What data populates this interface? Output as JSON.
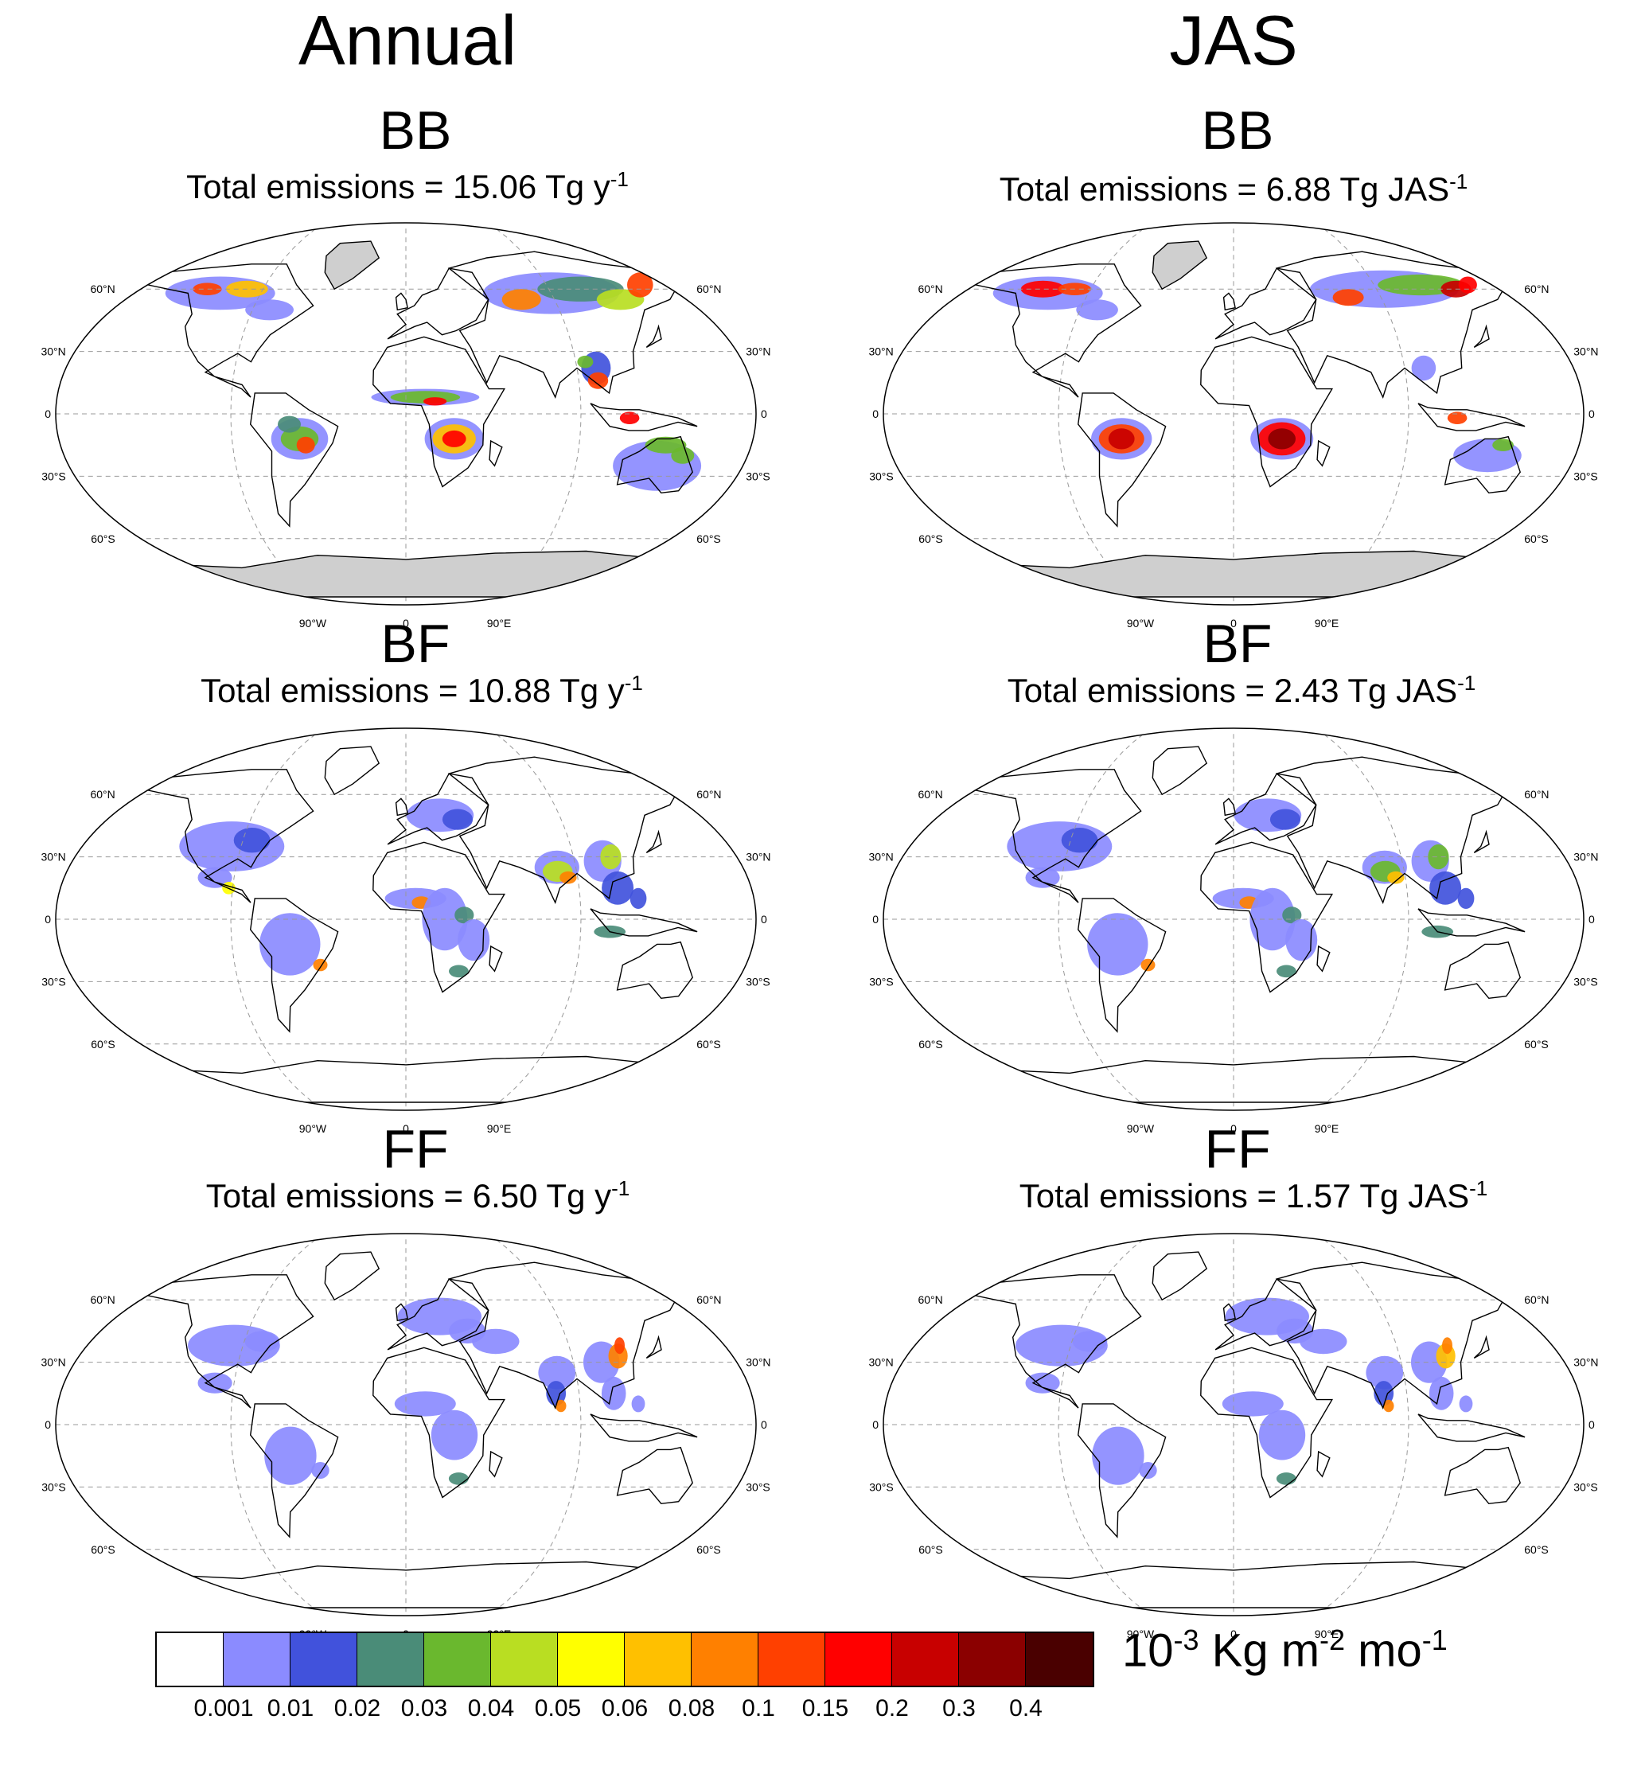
{
  "columns": [
    {
      "title": "Annual"
    },
    {
      "title": "JAS"
    }
  ],
  "panels": [
    {
      "species": "BB",
      "emissions_prefix": "Total emissions = 15.06 Tg y",
      "emissions_exp": "-1"
    },
    {
      "species": "BB",
      "emissions_prefix": "Total emissions = 6.88 Tg JAS",
      "emissions_exp": "-1"
    },
    {
      "species": "BF",
      "emissions_prefix": "Total emissions = 10.88 Tg y",
      "emissions_exp": "-1"
    },
    {
      "species": "BF",
      "emissions_prefix": "Total emissions = 2.43 Tg JAS",
      "emissions_exp": "-1"
    },
    {
      "species": "FF",
      "emissions_prefix": "Total emissions = 6.50 Tg y",
      "emissions_exp": "-1"
    },
    {
      "species": "FF",
      "emissions_prefix": "Total emissions = 1.57 Tg JAS",
      "emissions_exp": "-1"
    }
  ],
  "map_labels": {
    "lat": [
      "60°N",
      "30°N",
      "0",
      "30°S",
      "60°S"
    ],
    "lon": [
      "90°W",
      "0",
      "90°E"
    ]
  },
  "colorbar": {
    "colors": [
      "#ffffff",
      "#8b8bff",
      "#4152dc",
      "#4a8c78",
      "#6ab82e",
      "#b9de22",
      "#ffff00",
      "#ffc000",
      "#ff8000",
      "#ff4000",
      "#ff0000",
      "#c80000",
      "#8b0000",
      "#4a0000"
    ],
    "labels": [
      "0.001",
      "0.01",
      "0.02",
      "0.03",
      "0.04",
      "0.05",
      "0.06",
      "0.08",
      "0.1",
      "0.15",
      "0.2",
      "0.3",
      "0.4"
    ],
    "unit_base": "10",
    "unit_exp1": "-3",
    "unit_mid": " Kg m",
    "unit_exp2": "-2",
    "unit_end": " mo",
    "unit_exp3": "-1"
  }
}
